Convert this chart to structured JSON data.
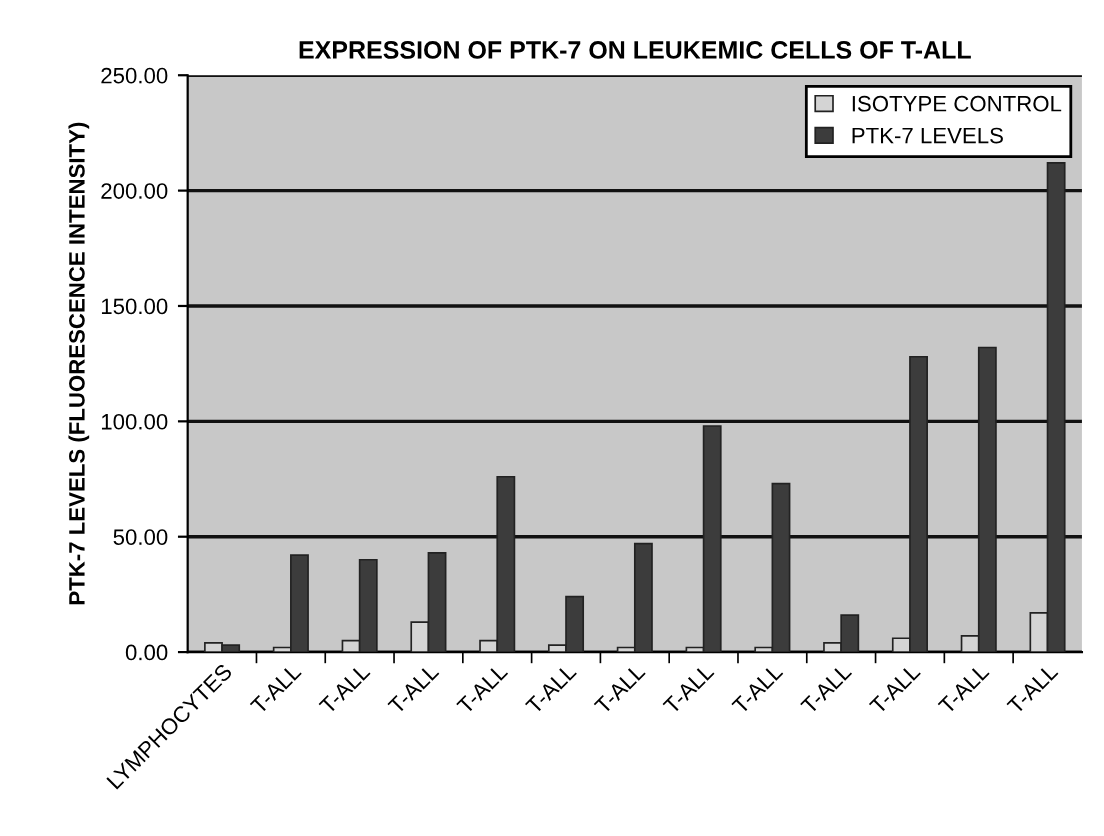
{
  "chart_data": {
    "type": "bar",
    "title": "EXPRESSION OF PTK-7 ON LEUKEMIC CELLS OF T-ALL",
    "ylabel": "PTK-7 LEVELS (FLUORESCENCE INTENSITY)",
    "categories": [
      "LYMPHOCYTES",
      "T-ALL",
      "T-ALL",
      "T-ALL",
      "T-ALL",
      "T-ALL",
      "T-ALL",
      "T-ALL",
      "T-ALL",
      "T-ALL",
      "T-ALL",
      "T-ALL",
      "T-ALL"
    ],
    "series": [
      {
        "name": "ISOTYPE CONTROL",
        "color": "#d4d4d4",
        "values": [
          4,
          2,
          5,
          13,
          5,
          3,
          2,
          2,
          2,
          4,
          6,
          7,
          17
        ]
      },
      {
        "name": "PTK-7 LEVELS",
        "color": "#3c3c3c",
        "values": [
          3,
          42,
          40,
          43,
          76,
          24,
          47,
          98,
          73,
          16,
          128,
          132,
          212
        ]
      }
    ],
    "ylim": [
      0,
      250
    ],
    "yticks": [
      {
        "value": 0,
        "label": "0.00"
      },
      {
        "value": 50,
        "label": "50.00"
      },
      {
        "value": 100,
        "label": "100.00"
      },
      {
        "value": 150,
        "label": "150.00"
      },
      {
        "value": 200,
        "label": "200.00"
      },
      {
        "value": 250,
        "label": "250.00"
      }
    ],
    "grid": "y",
    "legend": "top right"
  }
}
